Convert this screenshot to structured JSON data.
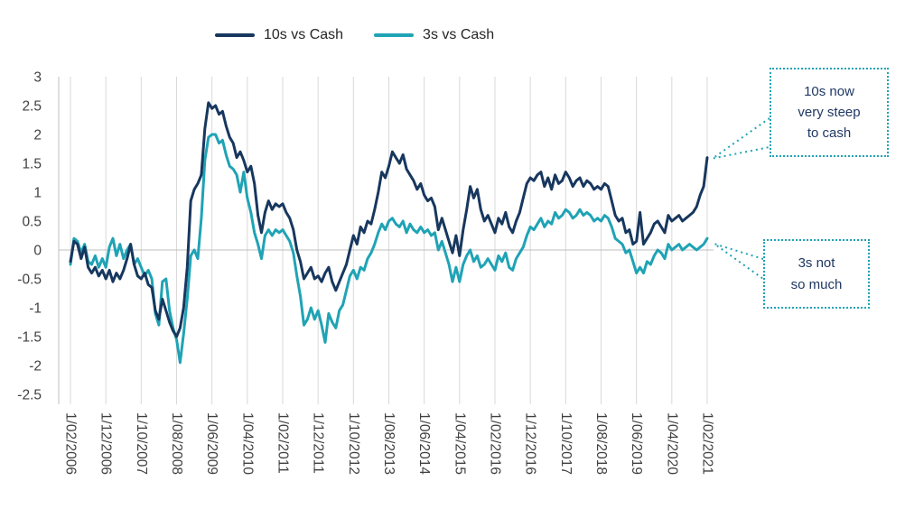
{
  "colors": {
    "navy": "#17375E",
    "teal": "#1FA3B5",
    "grid": "#D9D9D9",
    "axis": "#BFBFBF",
    "tick_text": "#404040",
    "annotation_text": "#1F3864",
    "callout_border": "#1FA3B5"
  },
  "annotations": [
    {
      "lines": [
        "10s now",
        "very steep",
        "to cash"
      ]
    },
    {
      "lines": [
        "3s not",
        "so much"
      ]
    }
  ],
  "chart_data": {
    "type": "line",
    "title": "",
    "legend_position": "top",
    "grid": "vertical-only",
    "x_axis": {
      "unit": "monthly",
      "start": "1/02/2006",
      "end": "1/02/2021",
      "tick_labels": [
        "1/02/2006",
        "1/12/2006",
        "1/10/2007",
        "1/08/2008",
        "1/06/2009",
        "1/04/2010",
        "1/02/2011",
        "1/12/2011",
        "1/10/2012",
        "1/08/2013",
        "1/06/2014",
        "1/04/2015",
        "1/02/2016",
        "1/12/2016",
        "1/10/2017",
        "1/08/2018",
        "1/06/2019",
        "1/04/2020",
        "1/02/2021"
      ]
    },
    "y_axis": {
      "min": -2.5,
      "max": 3,
      "ticks": [
        3,
        2.5,
        2,
        1.5,
        1,
        0.5,
        0,
        -0.5,
        -1,
        -1.5,
        -2,
        -2.5
      ]
    },
    "series": [
      {
        "name": "10s vs Cash",
        "color": "#17375E",
        "values": [
          -0.2,
          0.15,
          0.1,
          -0.15,
          0.05,
          -0.3,
          -0.4,
          -0.3,
          -0.45,
          -0.35,
          -0.5,
          -0.35,
          -0.55,
          -0.4,
          -0.5,
          -0.35,
          -0.15,
          0.1,
          -0.25,
          -0.45,
          -0.5,
          -0.4,
          -0.6,
          -0.65,
          -1.05,
          -1.2,
          -0.85,
          -1.05,
          -1.25,
          -1.4,
          -1.5,
          -1.35,
          -1.0,
          -0.3,
          0.85,
          1.05,
          1.15,
          1.3,
          2.1,
          2.55,
          2.45,
          2.5,
          2.35,
          2.4,
          2.15,
          1.95,
          1.85,
          1.6,
          1.7,
          1.55,
          1.35,
          1.45,
          1.15,
          0.6,
          0.3,
          0.65,
          0.85,
          0.7,
          0.8,
          0.75,
          0.8,
          0.65,
          0.55,
          0.35,
          0.0,
          -0.2,
          -0.5,
          -0.4,
          -0.3,
          -0.5,
          -0.45,
          -0.55,
          -0.4,
          -0.3,
          -0.55,
          -0.7,
          -0.55,
          -0.4,
          -0.25,
          0.0,
          0.25,
          0.1,
          0.4,
          0.3,
          0.5,
          0.45,
          0.7,
          1.0,
          1.35,
          1.25,
          1.45,
          1.7,
          1.6,
          1.5,
          1.65,
          1.4,
          1.3,
          1.2,
          1.05,
          1.15,
          0.95,
          0.85,
          0.9,
          0.75,
          0.35,
          0.55,
          0.35,
          0.15,
          -0.05,
          0.25,
          -0.1,
          0.35,
          0.7,
          1.1,
          0.9,
          1.05,
          0.7,
          0.5,
          0.6,
          0.45,
          0.3,
          0.55,
          0.45,
          0.65,
          0.4,
          0.3,
          0.5,
          0.65,
          0.9,
          1.15,
          1.25,
          1.2,
          1.3,
          1.35,
          1.1,
          1.25,
          1.05,
          1.3,
          1.15,
          1.2,
          1.35,
          1.25,
          1.1,
          1.2,
          1.25,
          1.1,
          1.2,
          1.15,
          1.05,
          1.1,
          1.05,
          1.15,
          1.1,
          0.85,
          0.6,
          0.5,
          0.55,
          0.3,
          0.35,
          0.1,
          0.15,
          0.65,
          0.1,
          0.2,
          0.3,
          0.45,
          0.5,
          0.4,
          0.3,
          0.6,
          0.5,
          0.55,
          0.6,
          0.5,
          0.55,
          0.6,
          0.65,
          0.75,
          0.95,
          1.1,
          1.6
        ]
      },
      {
        "name": "3s vs Cash",
        "color": "#1FA3B5",
        "values": [
          -0.25,
          0.2,
          0.15,
          -0.05,
          0.1,
          -0.2,
          -0.25,
          -0.1,
          -0.3,
          -0.15,
          -0.3,
          0.05,
          0.2,
          -0.1,
          0.1,
          -0.15,
          0.0,
          0.1,
          -0.25,
          -0.15,
          -0.3,
          -0.45,
          -0.35,
          -0.5,
          -1.1,
          -1.3,
          -0.55,
          -0.5,
          -1.05,
          -1.35,
          -1.55,
          -1.95,
          -1.45,
          -0.85,
          -0.1,
          0.0,
          -0.15,
          0.55,
          1.55,
          1.95,
          2.0,
          2.0,
          1.85,
          1.9,
          1.65,
          1.45,
          1.4,
          1.3,
          1.0,
          1.35,
          0.9,
          0.65,
          0.3,
          0.1,
          -0.15,
          0.25,
          0.35,
          0.25,
          0.35,
          0.3,
          0.35,
          0.25,
          0.15,
          -0.05,
          -0.45,
          -0.8,
          -1.3,
          -1.2,
          -1.0,
          -1.2,
          -1.05,
          -1.3,
          -1.6,
          -1.1,
          -1.25,
          -1.35,
          -1.05,
          -0.95,
          -0.7,
          -0.45,
          -0.35,
          -0.5,
          -0.3,
          -0.35,
          -0.15,
          -0.05,
          0.1,
          0.3,
          0.45,
          0.35,
          0.5,
          0.55,
          0.45,
          0.4,
          0.5,
          0.3,
          0.45,
          0.35,
          0.3,
          0.4,
          0.3,
          0.35,
          0.25,
          0.3,
          0.0,
          0.15,
          -0.05,
          -0.25,
          -0.55,
          -0.3,
          -0.55,
          -0.25,
          -0.1,
          0.0,
          -0.2,
          -0.1,
          -0.3,
          -0.25,
          -0.15,
          -0.25,
          -0.35,
          -0.1,
          -0.2,
          -0.05,
          -0.3,
          -0.35,
          -0.15,
          -0.05,
          0.05,
          0.25,
          0.4,
          0.35,
          0.45,
          0.55,
          0.4,
          0.5,
          0.45,
          0.65,
          0.55,
          0.6,
          0.7,
          0.65,
          0.55,
          0.6,
          0.7,
          0.6,
          0.65,
          0.6,
          0.5,
          0.55,
          0.5,
          0.6,
          0.55,
          0.4,
          0.2,
          0.15,
          0.1,
          -0.05,
          0.0,
          -0.2,
          -0.4,
          -0.3,
          -0.4,
          -0.2,
          -0.25,
          -0.1,
          0.0,
          -0.05,
          -0.15,
          0.1,
          0.0,
          0.05,
          0.1,
          0.0,
          0.05,
          0.1,
          0.05,
          0.0,
          0.05,
          0.1,
          0.2
        ]
      }
    ]
  }
}
